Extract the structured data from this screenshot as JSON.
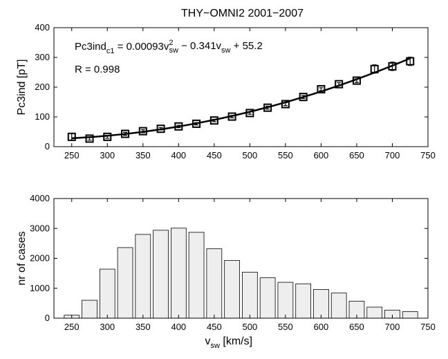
{
  "chart_data": [
    {
      "type": "line",
      "title": "THY−OMNI2 2001−2007",
      "ylabel": "Pc3ind [pT]",
      "annotations": [
        [
          "Pc3ind",
          "c1",
          " = 0.00093v",
          "2",
          "sw",
          " − 0.341v",
          "sw",
          " + 55.2"
        ],
        [
          "R = 0.998"
        ]
      ],
      "x": [
        250,
        275,
        300,
        325,
        350,
        375,
        400,
        425,
        450,
        475,
        500,
        525,
        550,
        575,
        600,
        625,
        650,
        675,
        700,
        725
      ],
      "series": [
        {
          "color": "#000000",
          "marker": "square",
          "values": [
            33,
            27,
            33,
            43,
            52,
            60,
            68,
            77,
            88,
            101,
            113,
            131,
            143,
            167,
            193,
            210,
            222,
            261,
            270,
            287
          ],
          "errors": [
            12,
            5,
            5,
            5,
            5,
            4,
            4,
            4,
            4,
            4,
            4,
            5,
            5,
            5,
            5,
            5,
            6,
            14,
            14,
            14
          ]
        },
        {
          "color": "#000000",
          "marker": "none",
          "values": [
            28.1,
            31.8,
            36.6,
            42.6,
            49.8,
            58.1,
            67.6,
            78.3,
            90.1,
            103.1,
            117.2,
            132.5,
            149.0,
            166.6,
            185.4,
            205.4,
            226.5,
            248.8,
            272.2,
            296.8
          ]
        }
      ],
      "xlim": [
        225,
        750
      ],
      "xticks": [
        250,
        300,
        350,
        400,
        450,
        500,
        550,
        600,
        650,
        700,
        750
      ],
      "ylim": [
        0,
        400
      ],
      "yticks": [
        0,
        100,
        200,
        300,
        400
      ]
    },
    {
      "type": "bar",
      "xlabel": [
        "v",
        "sw",
        " [km/s]"
      ],
      "ylabel": "nr of cases",
      "x": [
        250,
        275,
        300,
        325,
        350,
        375,
        400,
        425,
        450,
        475,
        500,
        525,
        550,
        575,
        600,
        625,
        650,
        675,
        700,
        725
      ],
      "values": [
        100,
        600,
        1640,
        2360,
        2800,
        2940,
        3010,
        2870,
        2320,
        1930,
        1540,
        1350,
        1200,
        1150,
        960,
        840,
        570,
        370,
        270,
        220
      ],
      "color": "#eeeeee",
      "xlim": [
        225,
        750
      ],
      "xticks": [
        250,
        300,
        350,
        400,
        450,
        500,
        550,
        600,
        650,
        700,
        750
      ],
      "ylim": [
        0,
        4000
      ],
      "yticks": [
        0,
        1000,
        2000,
        3000,
        4000
      ]
    }
  ]
}
